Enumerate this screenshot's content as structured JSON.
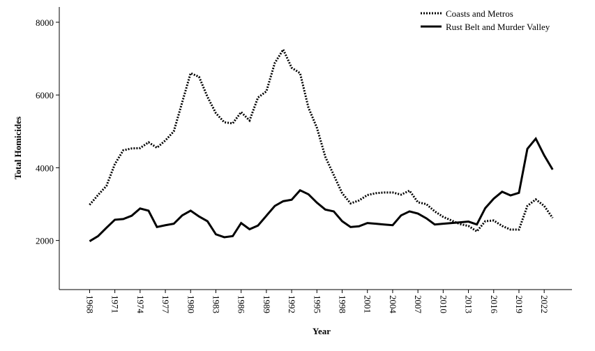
{
  "chart_data": {
    "type": "line",
    "x_label": "Year",
    "y_label": "Total Homicides",
    "x": [
      1968,
      1969,
      1970,
      1971,
      1972,
      1973,
      1974,
      1975,
      1976,
      1977,
      1978,
      1979,
      1980,
      1981,
      1982,
      1983,
      1984,
      1985,
      1986,
      1987,
      1988,
      1989,
      1990,
      1991,
      1992,
      1993,
      1994,
      1995,
      1996,
      1997,
      1998,
      1999,
      2000,
      2001,
      2002,
      2003,
      2004,
      2005,
      2006,
      2007,
      2008,
      2009,
      2010,
      2011,
      2012,
      2013,
      2014,
      2015,
      2016,
      2017,
      2018,
      2019,
      2020,
      2021,
      2022,
      2023
    ],
    "series": [
      {
        "name": "Coasts and Metros",
        "color": "#000000",
        "style": "dotted",
        "values": [
          2980,
          3250,
          3500,
          4100,
          4480,
          4530,
          4540,
          4700,
          4550,
          4750,
          5000,
          5800,
          6600,
          6500,
          5950,
          5500,
          5250,
          5220,
          5530,
          5300,
          5930,
          6100,
          6880,
          7250,
          6750,
          6600,
          5650,
          5100,
          4300,
          3800,
          3300,
          3020,
          3100,
          3250,
          3300,
          3320,
          3320,
          3260,
          3370,
          3050,
          3000,
          2800,
          2650,
          2550,
          2450,
          2400,
          2250,
          2530,
          2550,
          2400,
          2300,
          2300,
          2950,
          3130,
          2950,
          2620
        ]
      },
      {
        "name": "Rust Belt and Murder Valley",
        "color": "#000000",
        "style": "solid",
        "values": [
          1980,
          2120,
          2350,
          2570,
          2590,
          2680,
          2880,
          2820,
          2370,
          2420,
          2460,
          2690,
          2820,
          2660,
          2530,
          2170,
          2090,
          2120,
          2480,
          2310,
          2410,
          2680,
          2950,
          3080,
          3120,
          3380,
          3270,
          3040,
          2850,
          2800,
          2530,
          2370,
          2390,
          2480,
          2460,
          2440,
          2420,
          2690,
          2800,
          2740,
          2610,
          2440,
          2460,
          2480,
          2500,
          2520,
          2440,
          2890,
          3150,
          3340,
          3240,
          3310,
          4520,
          4800,
          4340,
          3950
        ]
      }
    ],
    "xlim": [
      1964.4,
      2025.3
    ],
    "xticks": [
      1968,
      1971,
      1974,
      1977,
      1980,
      1983,
      1986,
      1989,
      1992,
      1995,
      1998,
      2001,
      2004,
      2007,
      2010,
      2013,
      2016,
      2019,
      2022
    ],
    "ylim": [
      650,
      8420
    ],
    "yticks": [
      2000,
      4000,
      6000,
      8000
    ],
    "legend": "upper right",
    "grid": false
  }
}
